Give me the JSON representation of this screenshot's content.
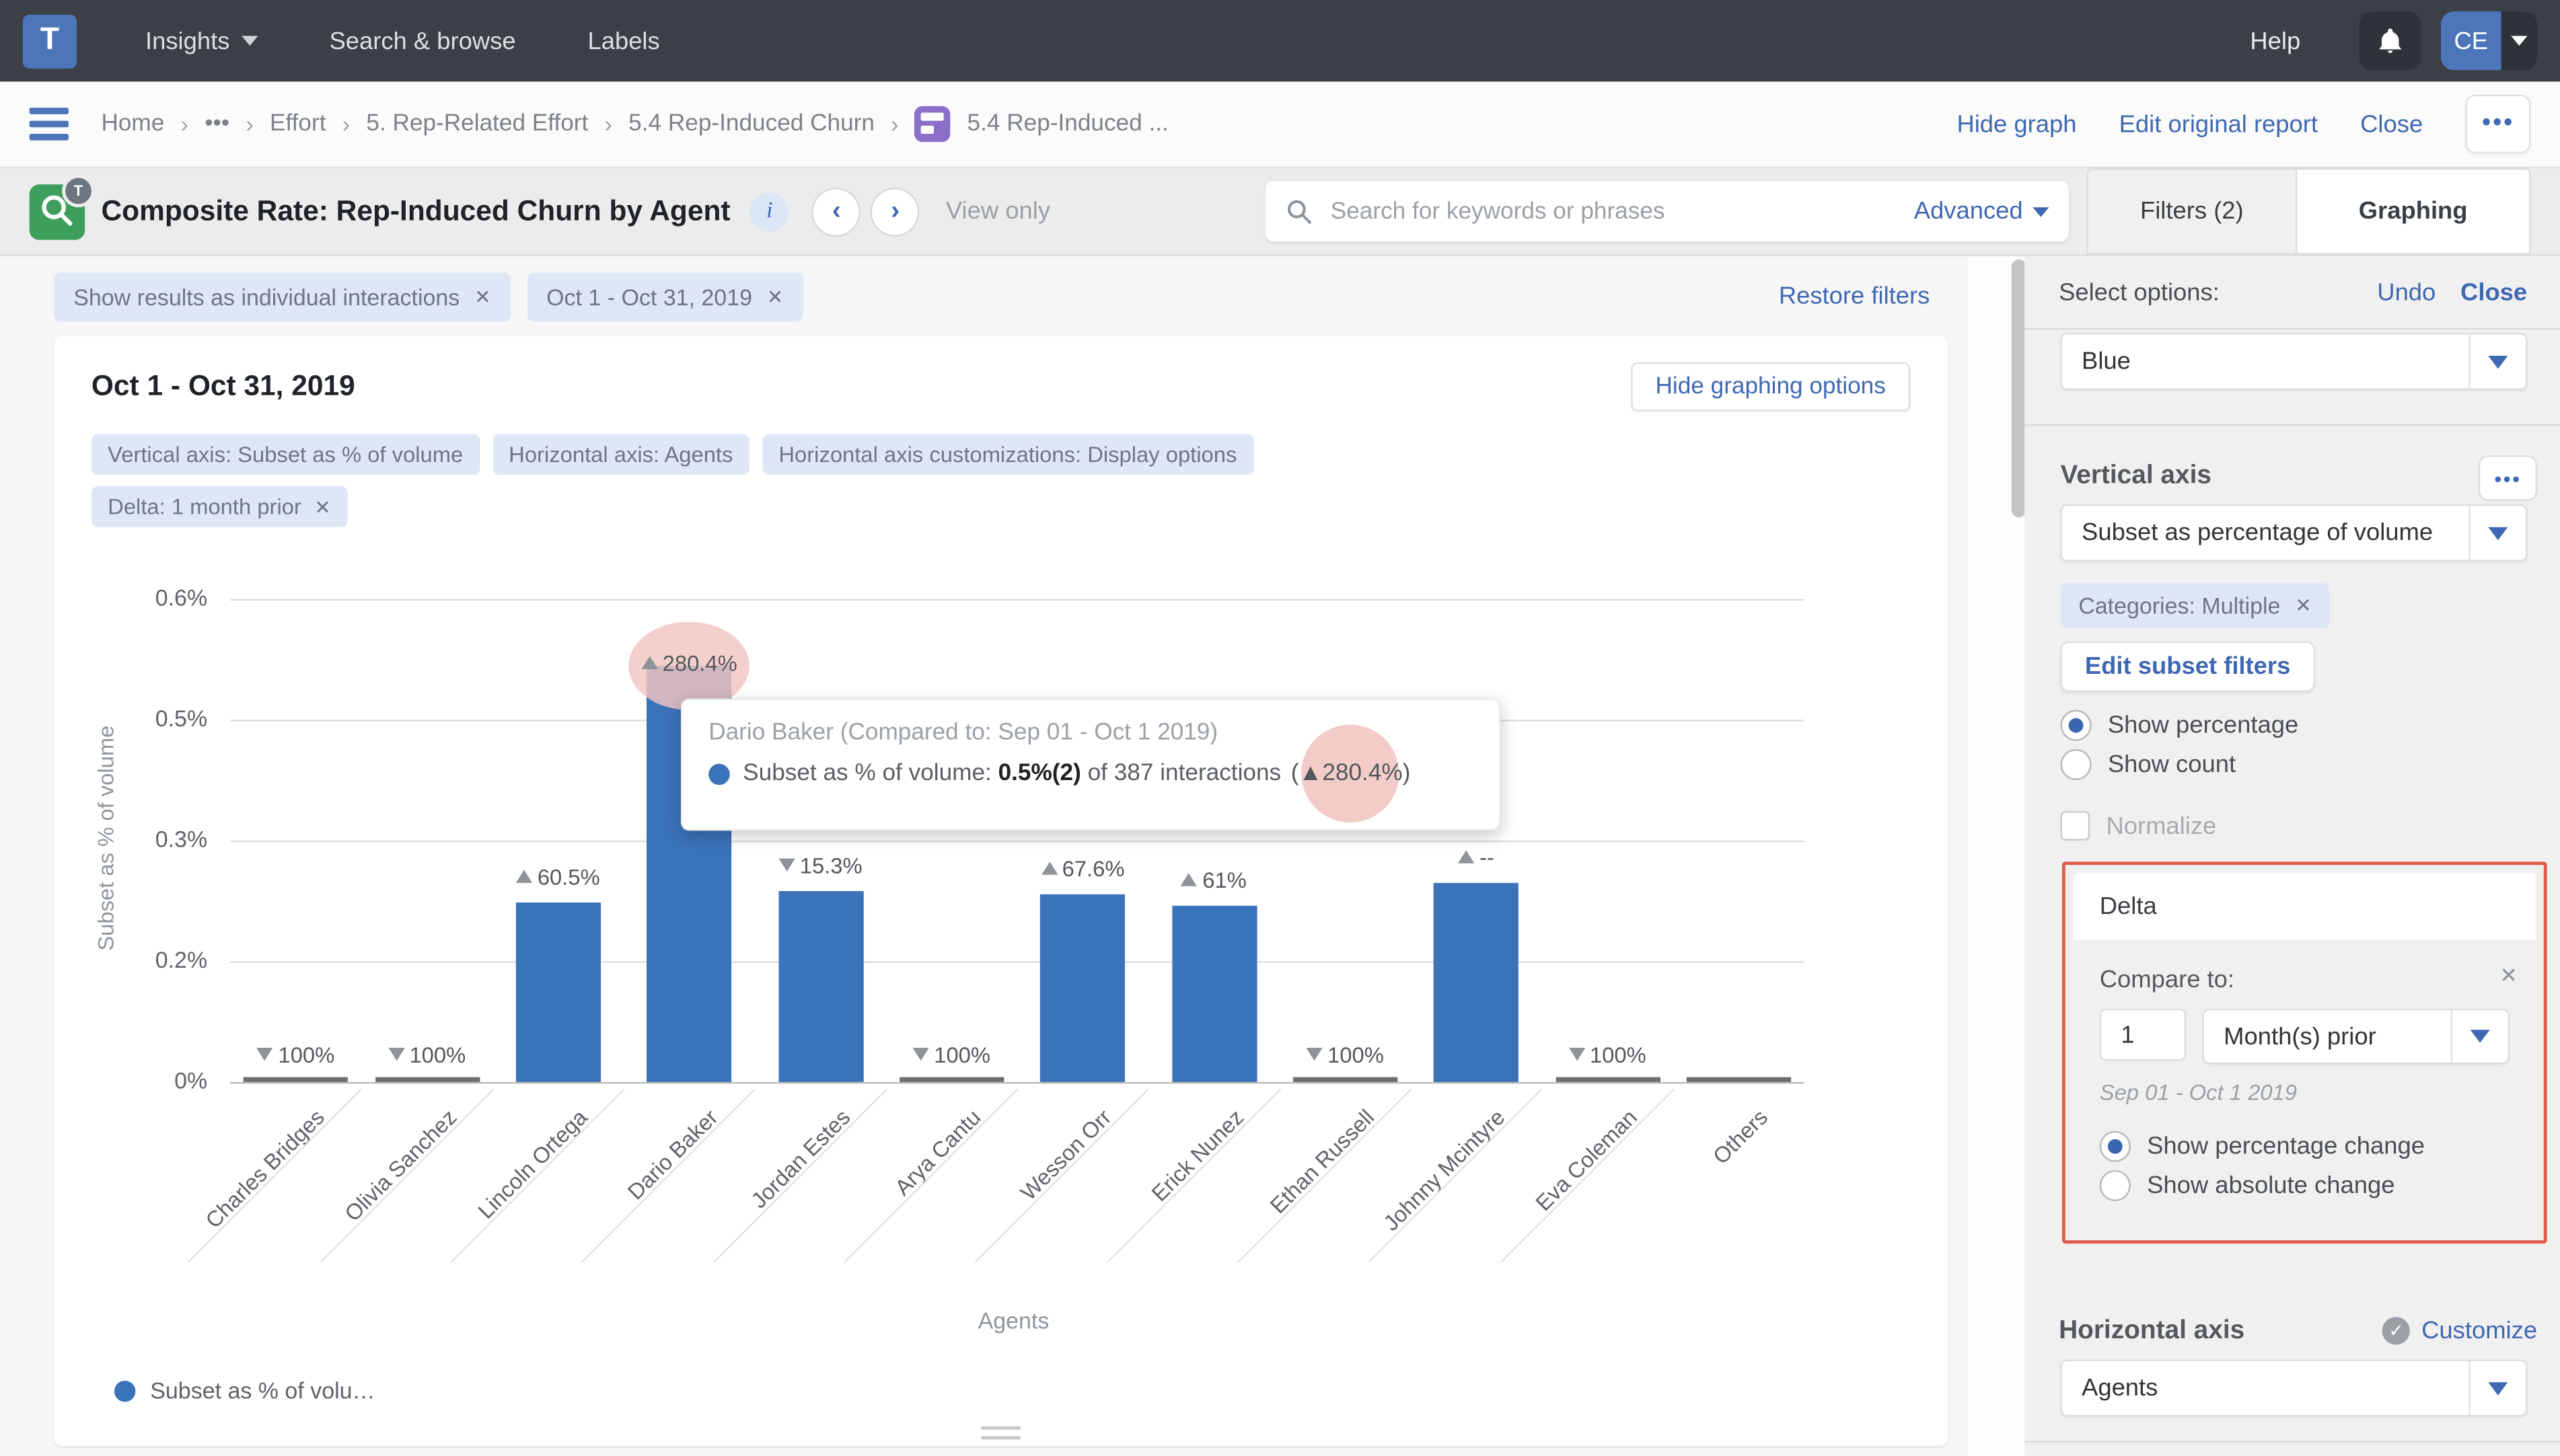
{
  "nav": {
    "logo_letter": "T",
    "items": [
      {
        "label": "Insights",
        "caret": true
      },
      {
        "label": "Search & browse",
        "caret": false
      },
      {
        "label": "Labels",
        "caret": false
      }
    ],
    "help_label": "Help",
    "avatar_initials": "CE"
  },
  "breadcrumb": {
    "items": [
      "Home",
      "•••",
      "Effort",
      "5. Rep-Related Effort",
      "5.4 Rep-Induced Churn"
    ],
    "current": "5.4 Rep-Induced ...",
    "actions": {
      "hide_graph": "Hide graph",
      "edit_original_report": "Edit original report",
      "close": "Close",
      "more": "•••"
    }
  },
  "header": {
    "title": "Composite Rate: Rep-Induced Churn by Agent",
    "info": "i",
    "prev": "‹",
    "next": "›",
    "view_only": "View only",
    "search_placeholder": "Search for keywords or phrases",
    "advanced": "Advanced",
    "tab_filters": "Filters (2)",
    "tab_graphing": "Graphing"
  },
  "filters": {
    "chips": [
      {
        "label": "Show results as individual interactions",
        "removable": true
      },
      {
        "label": "Oct 1 - Oct 31, 2019",
        "removable": true
      }
    ],
    "restore": "Restore filters"
  },
  "card": {
    "title": "Oct 1 - Oct 31, 2019",
    "hide_graphing_options": "Hide graphing options",
    "option_chips": [
      {
        "label": "Vertical axis: Subset as % of volume",
        "removable": false
      },
      {
        "label": "Horizontal axis: Agents",
        "removable": false
      },
      {
        "label": "Horizontal axis customizations: Display options",
        "removable": false
      }
    ],
    "delta_chip": {
      "label": "Delta: 1 month prior",
      "removable": true
    }
  },
  "chart_data": {
    "type": "bar",
    "title": "Oct 1 - Oct 31, 2019",
    "xlabel": "Agents",
    "ylabel": "Subset as % of volume",
    "ylim": [
      0,
      0.6
    ],
    "y_tick_labels": [
      "0.6%",
      "0.5%",
      "0.3%",
      "0.2%",
      "0%"
    ],
    "grid": true,
    "legend": {
      "position": "bottom-left",
      "entries": [
        "Subset as % of volu…"
      ]
    },
    "categories": [
      "Charles Bridges",
      "Olivia Sanchez",
      "Lincoln Ortega",
      "Dario Baker",
      "Jordan Estes",
      "Arya Cantu",
      "Wesson Orr",
      "Erick Nunez",
      "Ethan Russell",
      "Johnny Mcintyre",
      "Eva Coleman",
      "Others"
    ],
    "series": [
      {
        "name": "Subset as % of volume",
        "values": [
          0,
          0,
          0.223,
          0.517,
          0.237,
          0,
          0.233,
          0.219,
          0,
          0.247,
          0,
          0
        ],
        "color": "#3b73b9"
      }
    ],
    "delta_labels": [
      {
        "dir": "down",
        "text": "100%"
      },
      {
        "dir": "down",
        "text": "100%"
      },
      {
        "dir": "up",
        "text": "60.5%"
      },
      {
        "dir": "up",
        "text": "280.4%",
        "highlight": true
      },
      {
        "dir": "down",
        "text": "15.3%"
      },
      {
        "dir": "down",
        "text": "100%"
      },
      {
        "dir": "up",
        "text": "67.6%"
      },
      {
        "dir": "up",
        "text": "61%"
      },
      {
        "dir": "down",
        "text": "100%"
      },
      {
        "dir": "up",
        "text": "--"
      },
      {
        "dir": "down",
        "text": "100%"
      },
      null
    ],
    "highlight_color": "#f2c6c2"
  },
  "tooltip": {
    "title": "Dario Baker (Compared to: Sep 01 - Oct 1 2019)",
    "metric_label": "Subset as % of volume: ",
    "value_bold": "0.5%(2)",
    "rest": " of 387 interactions ",
    "delta": "(▲280.4%)"
  },
  "panel": {
    "select_options_label": "Select options:",
    "undo": "Undo",
    "close": "Close",
    "color_value": "Blue",
    "vertical_axis_label": "Vertical axis",
    "more": "•••",
    "vaxis_value": "Subset as percentage of volume",
    "categories_chip": "Categories: Multiple",
    "edit_subset_filters": "Edit subset filters",
    "show_percentage": "Show percentage",
    "show_count": "Show count",
    "normalize": "Normalize",
    "delta_title": "Delta",
    "compare_to": "Compare to:",
    "compare_x": "✕",
    "compare_value": "1",
    "compare_unit": "Month(s) prior",
    "compare_range": "Sep 01 - Oct 1 2019",
    "show_percentage_change": "Show percentage change",
    "show_absolute_change": "Show absolute change",
    "horizontal_axis_label": "Horizontal axis",
    "customize": "Customize",
    "haxis_value": "Agents"
  },
  "colors": {
    "bar": "#3b73b9",
    "accent_blue": "#3f68b2",
    "nav_bg": "#3b4046",
    "chip_bg": "#dfe7f7",
    "red_outline": "#e05a4b",
    "pink_highlight": "#f2c6c2"
  }
}
